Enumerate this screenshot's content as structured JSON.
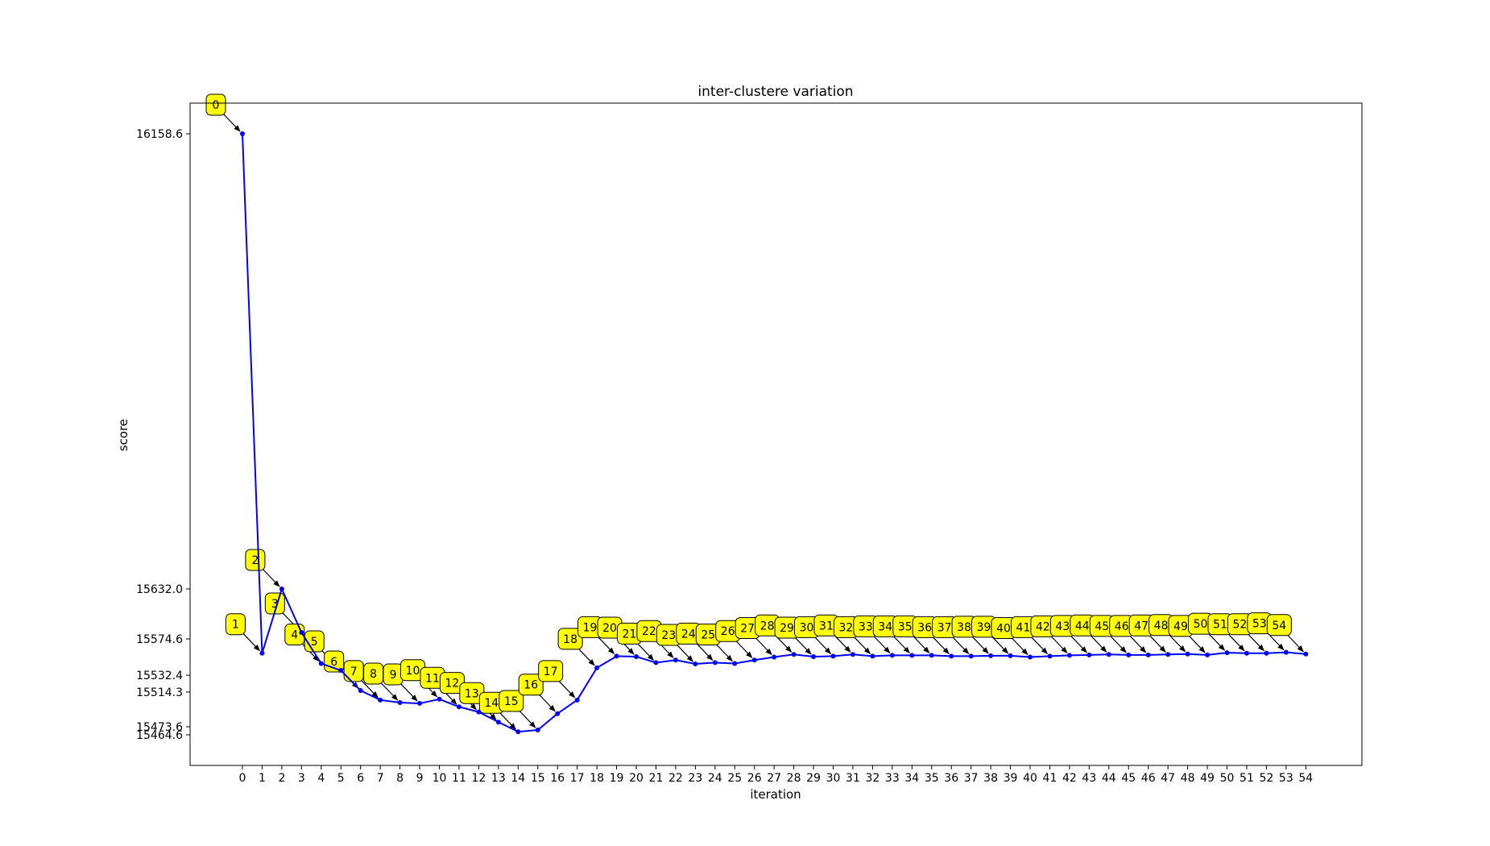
{
  "chart_data": {
    "type": "line",
    "title": "inter-clustere variation",
    "xlabel": "iteration",
    "ylabel": "score",
    "x": [
      0,
      1,
      2,
      3,
      4,
      5,
      6,
      7,
      8,
      9,
      10,
      11,
      12,
      13,
      14,
      15,
      16,
      17,
      18,
      19,
      20,
      21,
      22,
      23,
      24,
      25,
      26,
      27,
      28,
      29,
      30,
      31,
      32,
      33,
      34,
      35,
      36,
      37,
      38,
      39,
      40,
      41,
      42,
      43,
      44,
      45,
      46,
      47,
      48,
      49,
      50,
      51,
      52,
      53,
      54
    ],
    "series": [
      {
        "values": [
          16158.6,
          15558.0,
          15632.0,
          15582.0,
          15546.0,
          15538.0,
          15516.0,
          15505.0,
          15502.0,
          15501.0,
          15506.0,
          15497.0,
          15491.0,
          15479.0,
          15468.0,
          15470.0,
          15489.0,
          15505.0,
          15541.0,
          15554.5,
          15554.0,
          15547.0,
          15550.0,
          15545.5,
          15547.0,
          15546.0,
          15550.0,
          15553.5,
          15556.5,
          15554.0,
          15554.5,
          15556.5,
          15554.5,
          15555.5,
          15555.5,
          15555.5,
          15554.5,
          15554.5,
          15555.0,
          15555.0,
          15553.5,
          15554.5,
          15555.5,
          15556.0,
          15556.5,
          15556.0,
          15556.0,
          15556.5,
          15557.0,
          15556.0,
          15558.5,
          15558.0,
          15558.0,
          15559.0,
          15557.0
        ],
        "color": "#0000ff"
      }
    ],
    "ytick_labels": [
      "16158.6",
      "15632.0",
      "15574.6",
      "15532.4",
      "15514.3",
      "15473.6",
      "15464.6"
    ],
    "xtick_labels": [
      "0",
      "1",
      "2",
      "3",
      "4",
      "5",
      "6",
      "7",
      "8",
      "9",
      "10",
      "11",
      "12",
      "13",
      "14",
      "15",
      "16",
      "17",
      "18",
      "19",
      "20",
      "21",
      "22",
      "23",
      "24",
      "25",
      "26",
      "27",
      "28",
      "29",
      "30",
      "31",
      "32",
      "33",
      "34",
      "35",
      "36",
      "37",
      "38",
      "39",
      "40",
      "41",
      "42",
      "43",
      "44",
      "45",
      "46",
      "47",
      "48",
      "49",
      "50",
      "51",
      "52",
      "53",
      "54"
    ],
    "annotation_color": "#ffff00",
    "grid": false
  }
}
